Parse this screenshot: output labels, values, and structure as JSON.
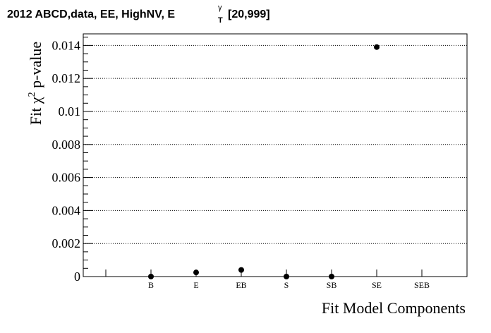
{
  "title": {
    "main": "2012 ABCD,data, EE, HighNV, E",
    "sup": "γ",
    "sub": "T",
    "range": "[20,999]"
  },
  "chart_data": {
    "type": "scatter",
    "categories": [
      "B",
      "E",
      "EB",
      "S",
      "SB",
      "SE",
      "SEB"
    ],
    "values": [
      0.0,
      0.00025,
      0.0004,
      0.0,
      0.0,
      0.0139,
      null
    ],
    "ylabel": "Fit χ² p-value",
    "ylabel_parts": {
      "pre": "Fit χ",
      "sup": "2",
      "post": " p-value"
    },
    "xlabel": "Fit Model Components",
    "ylim": [
      0,
      0.0147
    ],
    "yticks": [
      0,
      0.002,
      0.004,
      0.006,
      0.008,
      0.01,
      0.012,
      0.014
    ],
    "ytick_labels": [
      "0",
      "0.002",
      "0.004",
      "0.006",
      "0.008",
      "0.01",
      "0.012",
      "0.014"
    ],
    "grid": "horizontal dotted",
    "marker_color": "#000000"
  }
}
